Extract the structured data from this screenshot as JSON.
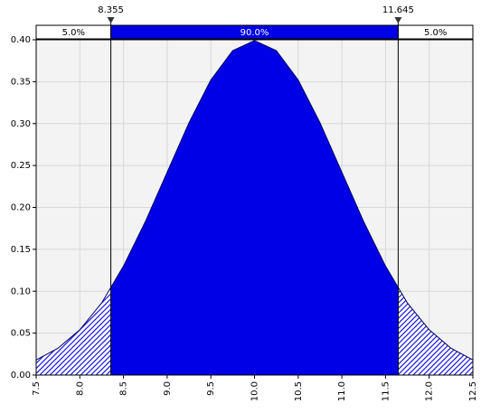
{
  "chart_data": {
    "type": "area",
    "x": [
      7.5,
      7.75,
      8.0,
      8.25,
      8.5,
      8.75,
      9.0,
      9.25,
      9.5,
      9.75,
      10.0,
      10.25,
      10.5,
      10.75,
      11.0,
      11.25,
      11.5,
      11.75,
      12.0,
      12.25,
      12.5
    ],
    "values": [
      0.018,
      0.032,
      0.054,
      0.086,
      0.13,
      0.183,
      0.242,
      0.301,
      0.352,
      0.387,
      0.399,
      0.387,
      0.352,
      0.301,
      0.242,
      0.183,
      0.13,
      0.086,
      0.054,
      0.032,
      0.018
    ],
    "color": "#0000e6",
    "xlim": [
      7.5,
      12.5
    ],
    "ylim": [
      0,
      0.4
    ],
    "xticks": [
      7.5,
      {
        "value": 8,
        "label": "8.0"
      },
      8.5,
      {
        "value": 9,
        "label": "9.0"
      },
      9.5,
      {
        "value": 10,
        "label": "10.0"
      },
      10.5,
      {
        "value": 11,
        "label": "11.0"
      },
      11.5,
      {
        "value": 12,
        "label": "12.0"
      },
      12.5
    ],
    "yticks": [
      {
        "value": 0,
        "label": "0.00"
      },
      {
        "value": 0.05,
        "label": "0.05"
      },
      {
        "value": 0.1,
        "label": "0.10"
      },
      {
        "value": 0.15,
        "label": "0.15"
      },
      {
        "value": 0.2,
        "label": "0.20"
      },
      {
        "value": 0.25,
        "label": "0.25"
      },
      {
        "value": 0.3,
        "label": "0.30"
      },
      {
        "value": 0.35,
        "label": "0.35"
      },
      {
        "value": 0.4,
        "label": "0.40"
      }
    ],
    "grid": true,
    "interval": {
      "bounds": [
        8.355,
        11.645
      ],
      "values": [
        5,
        90,
        5
      ],
      "value_labels": [
        "5.0%",
        "90.0%",
        "5.0%"
      ]
    }
  }
}
